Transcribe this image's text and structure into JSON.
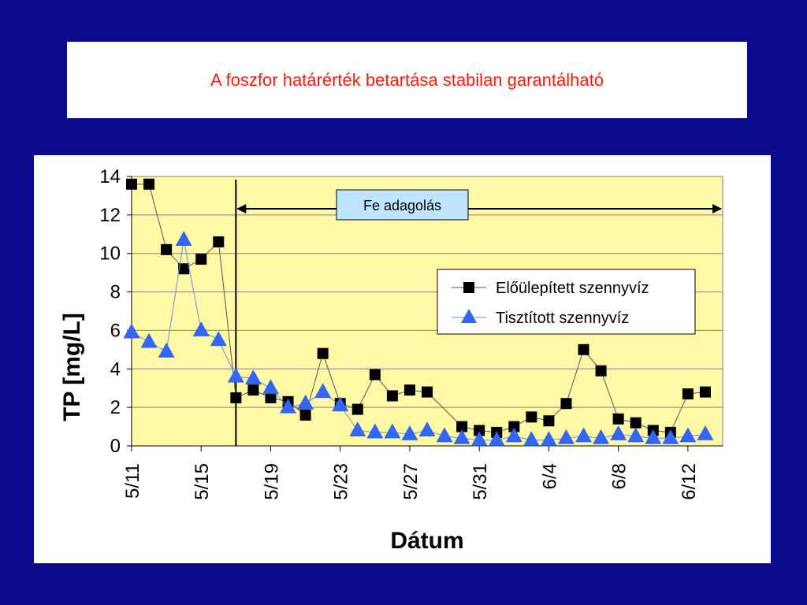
{
  "slide": {
    "title": "A foszfor határérték betartása stabilan garantálható"
  },
  "colors": {
    "background": "#0a0a8c",
    "title_text": "#ff1a0a",
    "plot_area": "#fff9a6",
    "series_raw": "#000000",
    "series_treated": "#3366ff",
    "annotation_box": "#bfe4ff"
  },
  "chart_data": {
    "type": "line",
    "ylabel": "TP [mg/L]",
    "xlabel": "Dátum",
    "ylim": [
      0,
      14
    ],
    "yticks": [
      0,
      2,
      4,
      6,
      8,
      10,
      12,
      14
    ],
    "x_tick_labels": [
      "5/11",
      "5/15",
      "5/19",
      "5/23",
      "5/27",
      "5/31",
      "6/4",
      "6/8",
      "6/12"
    ],
    "x_tick_dates": [
      "5/11",
      "5/15",
      "5/19",
      "5/23",
      "5/27",
      "5/31",
      "6/4",
      "6/8",
      "6/12"
    ],
    "xlim": [
      "5/11",
      "6/14"
    ],
    "grid": "horizontal",
    "legend_position": "right",
    "annotation": {
      "label": "Fe adagolás",
      "start": "5/17",
      "end": "6/14"
    },
    "series": [
      {
        "name": "Előülepített szennyvíz",
        "marker": "square",
        "points": [
          {
            "x": "5/11",
            "y": 13.6
          },
          {
            "x": "5/12",
            "y": 13.6
          },
          {
            "x": "5/13",
            "y": 10.2
          },
          {
            "x": "5/14",
            "y": 9.2
          },
          {
            "x": "5/15",
            "y": 9.7
          },
          {
            "x": "5/16",
            "y": 10.6
          },
          {
            "x": "5/17",
            "y": 2.5
          },
          {
            "x": "5/18",
            "y": 2.9
          },
          {
            "x": "5/19",
            "y": 2.5
          },
          {
            "x": "5/20",
            "y": 2.3
          },
          {
            "x": "5/21",
            "y": 1.6
          },
          {
            "x": "5/22",
            "y": 4.8
          },
          {
            "x": "5/23",
            "y": 2.2
          },
          {
            "x": "5/24",
            "y": 1.9
          },
          {
            "x": "5/25",
            "y": 3.7
          },
          {
            "x": "5/26",
            "y": 2.6
          },
          {
            "x": "5/27",
            "y": 2.9
          },
          {
            "x": "5/28",
            "y": 2.8
          },
          {
            "x": "5/30",
            "y": 1.0
          },
          {
            "x": "5/31",
            "y": 0.8
          },
          {
            "x": "6/1",
            "y": 0.7
          },
          {
            "x": "6/2",
            "y": 1.0
          },
          {
            "x": "6/3",
            "y": 1.5
          },
          {
            "x": "6/4",
            "y": 1.3
          },
          {
            "x": "6/5",
            "y": 2.2
          },
          {
            "x": "6/6",
            "y": 5.0
          },
          {
            "x": "6/7",
            "y": 3.9
          },
          {
            "x": "6/8",
            "y": 1.4
          },
          {
            "x": "6/9",
            "y": 1.2
          },
          {
            "x": "6/10",
            "y": 0.8
          },
          {
            "x": "6/11",
            "y": 0.7
          },
          {
            "x": "6/12",
            "y": 2.7
          },
          {
            "x": "6/13",
            "y": 2.8
          }
        ]
      },
      {
        "name": "Tisztított szennyvíz",
        "marker": "triangle",
        "points": [
          {
            "x": "5/11",
            "y": 5.9
          },
          {
            "x": "5/12",
            "y": 5.4
          },
          {
            "x": "5/13",
            "y": 4.9
          },
          {
            "x": "5/14",
            "y": 10.7
          },
          {
            "x": "5/15",
            "y": 6.0
          },
          {
            "x": "5/16",
            "y": 5.5
          },
          {
            "x": "5/17",
            "y": 3.6
          },
          {
            "x": "5/18",
            "y": 3.5
          },
          {
            "x": "5/19",
            "y": 3.0
          },
          {
            "x": "5/20",
            "y": 2.0
          },
          {
            "x": "5/21",
            "y": 2.2
          },
          {
            "x": "5/22",
            "y": 2.8
          },
          {
            "x": "5/23",
            "y": 2.1
          },
          {
            "x": "5/24",
            "y": 0.8
          },
          {
            "x": "5/25",
            "y": 0.7
          },
          {
            "x": "5/26",
            "y": 0.7
          },
          {
            "x": "5/27",
            "y": 0.6
          },
          {
            "x": "5/28",
            "y": 0.8
          },
          {
            "x": "5/29",
            "y": 0.5
          },
          {
            "x": "5/30",
            "y": 0.4
          },
          {
            "x": "5/31",
            "y": 0.3
          },
          {
            "x": "6/1",
            "y": 0.3
          },
          {
            "x": "6/2",
            "y": 0.5
          },
          {
            "x": "6/3",
            "y": 0.3
          },
          {
            "x": "6/4",
            "y": 0.3
          },
          {
            "x": "6/5",
            "y": 0.4
          },
          {
            "x": "6/6",
            "y": 0.5
          },
          {
            "x": "6/7",
            "y": 0.4
          },
          {
            "x": "6/8",
            "y": 0.6
          },
          {
            "x": "6/9",
            "y": 0.5
          },
          {
            "x": "6/10",
            "y": 0.4
          },
          {
            "x": "6/11",
            "y": 0.4
          },
          {
            "x": "6/12",
            "y": 0.5
          },
          {
            "x": "6/13",
            "y": 0.6
          }
        ]
      }
    ]
  }
}
